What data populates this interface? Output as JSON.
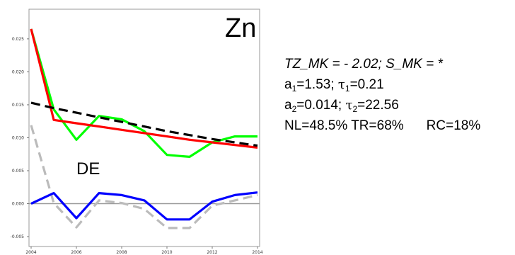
{
  "panel": {
    "element_label": "Zn",
    "region_label": "DE"
  },
  "stats": {
    "trend_line": "TZ_MK = - 2.02; S_MK = *",
    "fit1": {
      "a_sym": "a",
      "a_sub": "1",
      "a_val": "=1.53; ",
      "tau_sym": "τ",
      "tau_sub": "1",
      "tau_val": "=0.21"
    },
    "fit2": {
      "a_sym": "a",
      "a_sub": "2",
      "a_val": "=0.014; ",
      "tau_sym": "τ",
      "tau_sub": "2",
      "tau_val": "=22.56"
    },
    "nl": "NL=48.5%",
    "tr": "TR=68%",
    "rc": "RC=18%"
  },
  "chart_data": {
    "type": "line",
    "x": [
      2004,
      2005,
      2006,
      2007,
      2008,
      2009,
      2010,
      2011,
      2012,
      2013,
      2014
    ],
    "xticks": [
      "2004",
      "2006",
      "2008",
      "2010",
      "2012",
      "2014"
    ],
    "xlim": [
      2004,
      2014
    ],
    "yticks": [
      "-0.005",
      "0.000",
      "0.005",
      "0.010",
      "0.015",
      "0.020",
      "0.025"
    ],
    "ylim": [
      -0.0065,
      0.0295
    ],
    "grid": false,
    "legend": "none",
    "zero_line": {
      "value": 0,
      "color": "#999999"
    },
    "series": [
      {
        "color": "#00ff00",
        "style": "solid",
        "values": [
          0.0265,
          0.0143,
          0.0097,
          0.0133,
          0.0128,
          0.011,
          0.0074,
          0.0071,
          0.0093,
          0.0102,
          0.0102
        ]
      },
      {
        "color": "#ff0000",
        "style": "solid",
        "values": [
          0.0265,
          0.0127,
          0.0122,
          0.0117,
          0.0112,
          0.0107,
          0.0102,
          0.0097,
          0.0093,
          0.0089,
          0.0085
        ]
      },
      {
        "color": "#000000",
        "style": "dashed",
        "values": [
          0.0153,
          0.0145,
          0.0138,
          0.0131,
          0.0124,
          0.0117,
          0.011,
          0.0104,
          0.0098,
          0.0093,
          0.0088
        ]
      },
      {
        "color": "#bbbbbb",
        "style": "dashed",
        "values": [
          0.0119,
          0.0001,
          -0.0036,
          0.0005,
          0.0001,
          -0.0008,
          -0.0037,
          -0.0037,
          -0.0003,
          0.0005,
          0.0013
        ]
      },
      {
        "color": "#0000ff",
        "style": "solid",
        "values": [
          0.0,
          0.0016,
          -0.0022,
          0.0016,
          0.0013,
          0.0005,
          -0.0024,
          -0.0024,
          0.0003,
          0.0013,
          0.0017
        ]
      }
    ]
  }
}
